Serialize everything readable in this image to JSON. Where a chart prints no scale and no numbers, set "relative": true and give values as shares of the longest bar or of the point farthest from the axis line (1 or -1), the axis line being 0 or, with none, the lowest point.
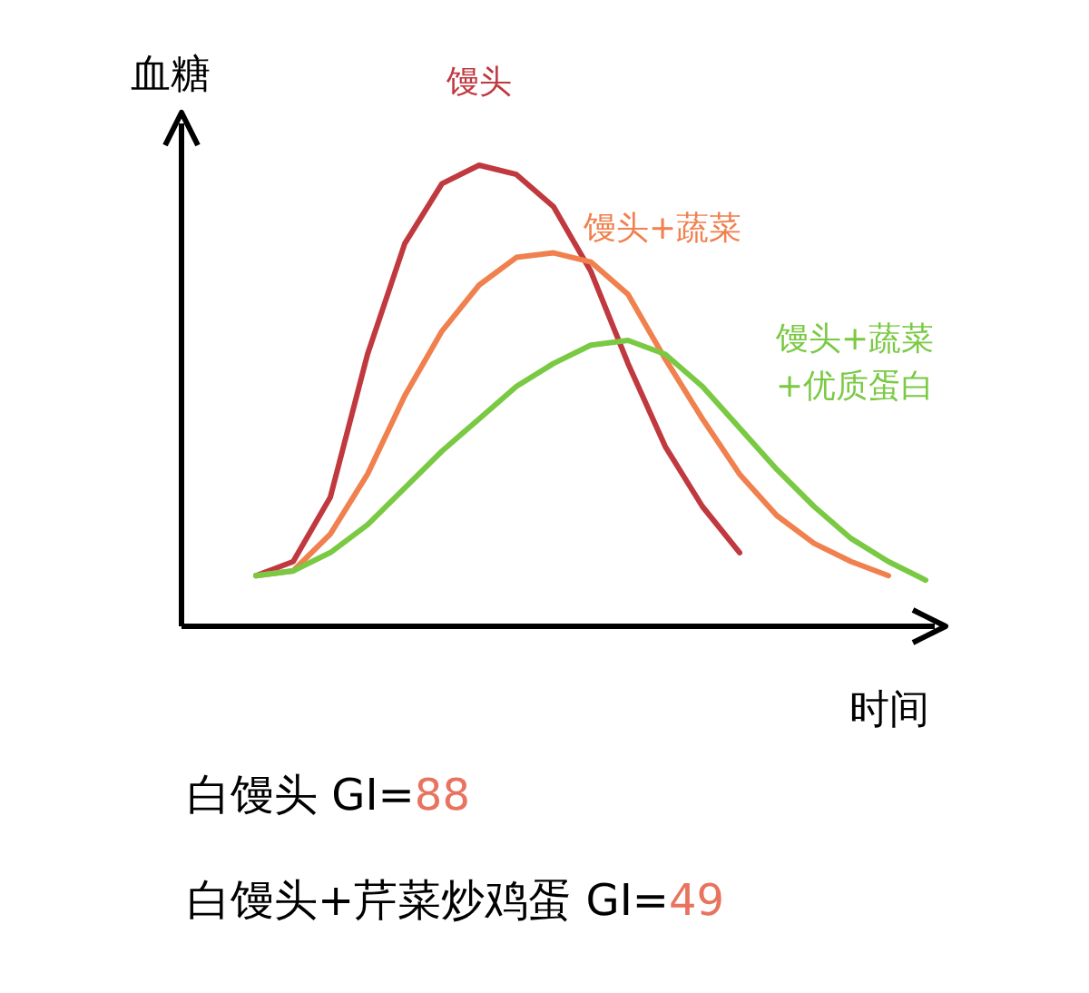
{
  "chart_data": {
    "type": "line",
    "relative": true,
    "xlabel": "时间",
    "ylabel": "血糖",
    "grid": false,
    "categories": [
      null,
      null,
      null,
      null,
      null,
      null,
      null,
      null,
      null,
      null,
      null,
      null,
      null,
      null,
      null,
      null,
      null,
      null,
      null,
      null,
      null
    ],
    "series": [
      {
        "name": "馒头",
        "color": "#c0393f",
        "values": [
          null,
          null,
          0.11,
          0.14,
          0.28,
          0.59,
          0.83,
          0.96,
          1.0,
          0.98,
          0.91,
          0.77,
          0.57,
          0.39,
          0.26,
          0.16,
          null,
          null,
          null,
          null,
          null
        ]
      },
      {
        "name": "馒头+蔬菜",
        "color": "#f0804e",
        "values": [
          null,
          null,
          0.11,
          0.12,
          0.2,
          0.33,
          0.5,
          0.64,
          0.74,
          0.8,
          0.81,
          0.79,
          0.72,
          0.58,
          0.45,
          0.33,
          0.24,
          0.18,
          0.14,
          0.11,
          null
        ]
      },
      {
        "name": "馒头+蔬菜+优质蛋白",
        "color": "#7ac943",
        "values": [
          null,
          null,
          0.11,
          0.12,
          0.16,
          0.22,
          0.3,
          0.38,
          0.45,
          0.52,
          0.57,
          0.61,
          0.62,
          0.59,
          0.52,
          0.43,
          0.34,
          0.26,
          0.19,
          0.14,
          0.1
        ]
      }
    ],
    "annotations": [
      "白馒头 GI=88",
      "白馒头+芹菜炒鸡蛋 GI=49"
    ]
  }
}
